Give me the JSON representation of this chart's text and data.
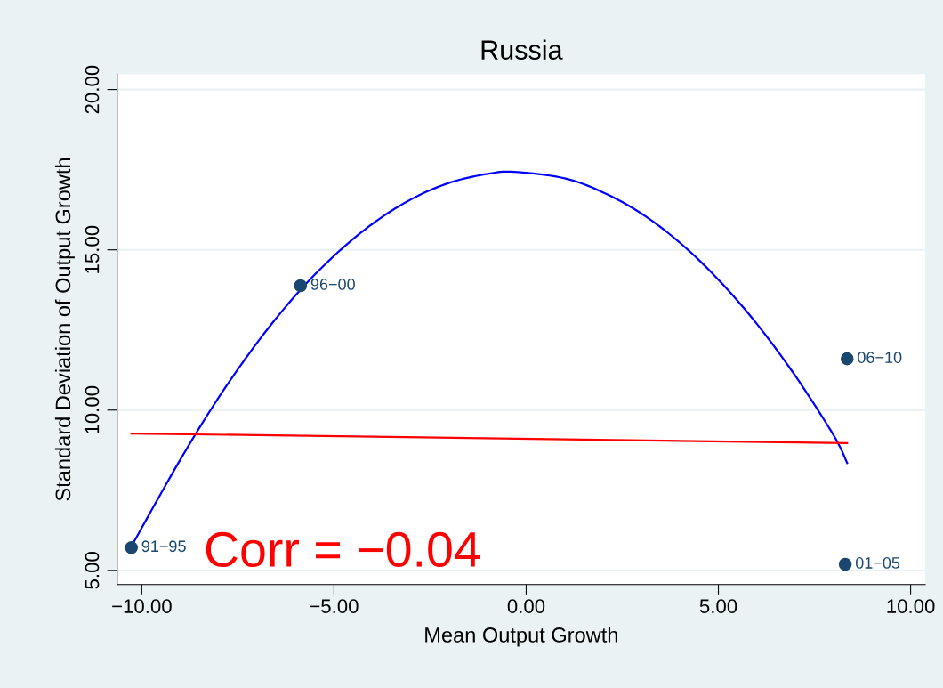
{
  "chart_data": {
    "type": "scatter",
    "title": "Russia",
    "xlabel": "Mean Output Growth",
    "ylabel": "Standard Deviation of Output Growth",
    "xlim": [
      -10.64,
      10.38
    ],
    "ylim": [
      4.56,
      20.48
    ],
    "xticks": [
      {
        "value": -10,
        "label": "−10.00"
      },
      {
        "value": -5,
        "label": "−5.00"
      },
      {
        "value": 0,
        "label": "0.00"
      },
      {
        "value": 5,
        "label": "5.00"
      },
      {
        "value": 10,
        "label": "10.00"
      }
    ],
    "yticks": [
      {
        "value": 5,
        "label": "5.00"
      },
      {
        "value": 10,
        "label": "10.00"
      },
      {
        "value": 15,
        "label": "15.00"
      },
      {
        "value": 20,
        "label": "20.00"
      }
    ],
    "grid": "y",
    "annotations": [
      "Corr = −0.04"
    ],
    "series": [
      {
        "type": "line",
        "color": "#0000ff",
        "x": [
          -10.27,
          -9,
          -8,
          -7,
          -6,
          -5,
          -4,
          -3,
          -2,
          -1,
          -0.31,
          1,
          2,
          3,
          4,
          5,
          6,
          7,
          8,
          8.35
        ],
        "values": [
          5.75,
          8.45,
          10.39,
          12.1,
          13.58,
          14.81,
          15.81,
          16.57,
          17.09,
          17.37,
          17.43,
          17.23,
          16.79,
          16.13,
          15.22,
          14.07,
          12.69,
          11.07,
          9.21,
          8.35
        ]
      },
      {
        "type": "line",
        "color": "#ff0000",
        "x": [
          -10.27,
          8.35
        ],
        "values": [
          9.27,
          8.97
        ]
      },
      {
        "color": "#1a476f",
        "marker": "circle",
        "x": [
          -10.27,
          -5.87,
          8.3,
          8.35
        ],
        "values": [
          5.71,
          13.88,
          5.19,
          11.6
        ],
        "value_labels": [
          "91−95",
          "96−00",
          "01−05",
          "06−10"
        ]
      }
    ]
  }
}
